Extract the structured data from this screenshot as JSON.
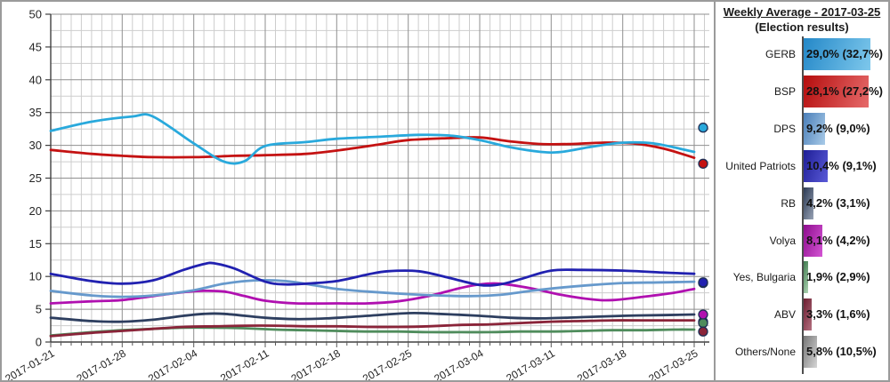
{
  "panel": {
    "title": "Weekly Average - 2017-03-25",
    "subtitle": "(Election results)",
    "items": [
      {
        "label": "GERB",
        "value_text": "29,0% (32,7%)",
        "weekly_avg": 29.0,
        "election_result": 32.7,
        "line_color": "#29a9dc",
        "bar_dark": "#2488c8",
        "bar_light": "#7ec8ec"
      },
      {
        "label": "BSP",
        "value_text": "28,1% (27,2%)",
        "weekly_avg": 28.1,
        "election_result": 27.2,
        "line_color": "#c41212",
        "bar_dark": "#b50d0d",
        "bar_light": "#e66a6a"
      },
      {
        "label": "DPS",
        "value_text": "9,2% (9,0%)",
        "weekly_avg": 9.2,
        "election_result": 9.0,
        "line_color": "#6699cc",
        "bar_dark": "#4a7eb8",
        "bar_light": "#a9cbe8"
      },
      {
        "label": "United Patriots",
        "value_text": "10,4% (9,1%)",
        "weekly_avg": 10.4,
        "election_result": 9.1,
        "line_color": "#2121b0",
        "bar_dark": "#1e1e96",
        "bar_light": "#5a5ad8"
      },
      {
        "label": "RB",
        "value_text": "4,2% (3,1%)",
        "weekly_avg": 4.2,
        "election_result": 3.1,
        "line_color": "#2d3e5f",
        "bar_dark": "#2c3a54",
        "bar_light": "#97a2b4"
      },
      {
        "label": "Volya",
        "value_text": "8,1% (4,2%)",
        "weekly_avg": 8.1,
        "election_result": 4.2,
        "line_color": "#b010b0",
        "bar_dark": "#8e0d8e",
        "bar_light": "#d455d4"
      },
      {
        "label": "Yes, Bulgaria",
        "value_text": "1,9% (2,9%)",
        "weekly_avg": 1.9,
        "election_result": 2.9,
        "line_color": "#4f8c5c",
        "bar_dark": "#3f7a4e",
        "bar_light": "#afd4b4"
      },
      {
        "label": "ABV",
        "value_text": "3,3% (1,6%)",
        "weekly_avg": 3.3,
        "election_result": 1.6,
        "line_color": "#8a2439",
        "bar_dark": "#6b1d30",
        "bar_light": "#b47080"
      },
      {
        "label": "Others/None",
        "value_text": "5,8% (10,5%)",
        "weekly_avg": 5.8,
        "election_result": 10.5,
        "line_color": "#a6a6a6",
        "bar_dark": "#777777",
        "bar_light": "#d6d6d6"
      }
    ]
  },
  "chart_data": {
    "type": "line",
    "title": "",
    "xlabel": "",
    "ylabel": "",
    "ylim": [
      0,
      50
    ],
    "y_major_step": 5,
    "y_minor_step": 2.5,
    "x_minor_step_days": 1,
    "x_major_step_days": 7,
    "x_total_days": 64,
    "grid": true,
    "x_tick_labels": [
      "2017-01-21",
      "2017-01-28",
      "2017-02-04",
      "2017-02-11",
      "2017-02-18",
      "2017-02-25",
      "2017-03-04",
      "2017-03-11",
      "2017-03-18",
      "2017-03-25"
    ],
    "y_tick_labels": [
      "0",
      "5",
      "10",
      "15",
      "20",
      "25",
      "30",
      "35",
      "40",
      "45",
      "50"
    ],
    "series": [
      {
        "name": "Yes, Bulgaria",
        "color": "#4f8c5c",
        "points": [
          [
            0,
            1.0
          ],
          [
            4,
            1.5
          ],
          [
            7,
            1.8
          ],
          [
            10,
            2.0
          ],
          [
            13,
            2.2
          ],
          [
            16,
            2.2
          ],
          [
            19,
            2.1
          ],
          [
            22,
            1.9
          ],
          [
            25,
            1.8
          ],
          [
            28,
            1.7
          ],
          [
            31,
            1.6
          ],
          [
            34,
            1.6
          ],
          [
            37,
            1.5
          ],
          [
            40,
            1.5
          ],
          [
            43,
            1.5
          ],
          [
            46,
            1.6
          ],
          [
            49,
            1.6
          ],
          [
            52,
            1.7
          ],
          [
            55,
            1.8
          ],
          [
            58,
            1.8
          ],
          [
            61,
            1.9
          ],
          [
            63,
            1.9
          ]
        ]
      },
      {
        "name": "ABV",
        "color": "#8a2439",
        "points": [
          [
            0,
            0.9
          ],
          [
            4,
            1.4
          ],
          [
            7,
            1.7
          ],
          [
            10,
            2.0
          ],
          [
            13,
            2.3
          ],
          [
            16,
            2.4
          ],
          [
            19,
            2.5
          ],
          [
            22,
            2.5
          ],
          [
            25,
            2.4
          ],
          [
            28,
            2.4
          ],
          [
            31,
            2.3
          ],
          [
            34,
            2.3
          ],
          [
            37,
            2.4
          ],
          [
            40,
            2.6
          ],
          [
            43,
            2.7
          ],
          [
            46,
            2.9
          ],
          [
            49,
            3.1
          ],
          [
            52,
            3.2
          ],
          [
            55,
            3.3
          ],
          [
            58,
            3.3
          ],
          [
            63,
            3.3
          ]
        ]
      },
      {
        "name": "RB",
        "color": "#2d3e5f",
        "points": [
          [
            0,
            3.7
          ],
          [
            4,
            3.2
          ],
          [
            7,
            3.1
          ],
          [
            10,
            3.4
          ],
          [
            13,
            4.0
          ],
          [
            15,
            4.3
          ],
          [
            17,
            4.3
          ],
          [
            21,
            3.7
          ],
          [
            24,
            3.5
          ],
          [
            27,
            3.6
          ],
          [
            31,
            4.0
          ],
          [
            35,
            4.4
          ],
          [
            38,
            4.3
          ],
          [
            42,
            4.0
          ],
          [
            45,
            3.7
          ],
          [
            48,
            3.6
          ],
          [
            52,
            3.8
          ],
          [
            56,
            4.0
          ],
          [
            60,
            4.1
          ],
          [
            63,
            4.2
          ]
        ]
      },
      {
        "name": "Volya",
        "color": "#b010b0",
        "points": [
          [
            0,
            5.9
          ],
          [
            4,
            6.2
          ],
          [
            7,
            6.4
          ],
          [
            10,
            7.0
          ],
          [
            13,
            7.6
          ],
          [
            15,
            7.8
          ],
          [
            17,
            7.7
          ],
          [
            19,
            7.0
          ],
          [
            21,
            6.3
          ],
          [
            24,
            5.9
          ],
          [
            28,
            5.9
          ],
          [
            31,
            5.9
          ],
          [
            34,
            6.2
          ],
          [
            37,
            7.0
          ],
          [
            40,
            8.2
          ],
          [
            42,
            8.8
          ],
          [
            44,
            8.9
          ],
          [
            47,
            8.2
          ],
          [
            50,
            7.2
          ],
          [
            53,
            6.5
          ],
          [
            55,
            6.4
          ],
          [
            58,
            6.9
          ],
          [
            61,
            7.5
          ],
          [
            63,
            8.1
          ]
        ]
      },
      {
        "name": "DPS",
        "color": "#6699cc",
        "points": [
          [
            0,
            7.8
          ],
          [
            4,
            7.1
          ],
          [
            7,
            6.9
          ],
          [
            10,
            7.1
          ],
          [
            14,
            7.9
          ],
          [
            17,
            8.9
          ],
          [
            20,
            9.4
          ],
          [
            23,
            9.3
          ],
          [
            26,
            8.6
          ],
          [
            28,
            8.1
          ],
          [
            31,
            7.7
          ],
          [
            35,
            7.3
          ],
          [
            38,
            7.1
          ],
          [
            41,
            7.0
          ],
          [
            44,
            7.2
          ],
          [
            47,
            7.8
          ],
          [
            50,
            8.3
          ],
          [
            53,
            8.7
          ],
          [
            56,
            9.0
          ],
          [
            60,
            9.1
          ],
          [
            63,
            9.2
          ]
        ]
      },
      {
        "name": "United Patriots",
        "color": "#2121b0",
        "points": [
          [
            0,
            10.4
          ],
          [
            4,
            9.3
          ],
          [
            7,
            8.9
          ],
          [
            10,
            9.4
          ],
          [
            13,
            11.0
          ],
          [
            15,
            11.9
          ],
          [
            16,
            12.0
          ],
          [
            18,
            11.2
          ],
          [
            21,
            9.2
          ],
          [
            23,
            8.8
          ],
          [
            25,
            8.9
          ],
          [
            28,
            9.3
          ],
          [
            31,
            10.3
          ],
          [
            33,
            10.8
          ],
          [
            36,
            10.8
          ],
          [
            39,
            9.8
          ],
          [
            42,
            8.7
          ],
          [
            44,
            8.8
          ],
          [
            46,
            9.6
          ],
          [
            49,
            10.9
          ],
          [
            52,
            11.0
          ],
          [
            56,
            10.9
          ],
          [
            60,
            10.6
          ],
          [
            63,
            10.4
          ]
        ]
      },
      {
        "name": "BSP",
        "color": "#c41212",
        "points": [
          [
            0,
            29.3
          ],
          [
            4,
            28.7
          ],
          [
            7,
            28.4
          ],
          [
            10,
            28.2
          ],
          [
            14,
            28.2
          ],
          [
            18,
            28.4
          ],
          [
            21,
            28.5
          ],
          [
            25,
            28.7
          ],
          [
            28,
            29.2
          ],
          [
            32,
            30.1
          ],
          [
            35,
            30.8
          ],
          [
            39,
            31.1
          ],
          [
            42,
            31.2
          ],
          [
            45,
            30.6
          ],
          [
            48,
            30.2
          ],
          [
            51,
            30.2
          ],
          [
            54,
            30.4
          ],
          [
            57,
            30.3
          ],
          [
            60,
            29.5
          ],
          [
            63,
            28.1
          ]
        ]
      },
      {
        "name": "GERB",
        "color": "#29a9dc",
        "points": [
          [
            0,
            32.2
          ],
          [
            4,
            33.6
          ],
          [
            8,
            34.4
          ],
          [
            10,
            34.4
          ],
          [
            14,
            30.3
          ],
          [
            17,
            27.5
          ],
          [
            19,
            27.6
          ],
          [
            21,
            29.9
          ],
          [
            25,
            30.5
          ],
          [
            28,
            31.0
          ],
          [
            32,
            31.3
          ],
          [
            36,
            31.6
          ],
          [
            39,
            31.5
          ],
          [
            42,
            30.8
          ],
          [
            45,
            29.7
          ],
          [
            48,
            29.0
          ],
          [
            50,
            29.0
          ],
          [
            53,
            29.8
          ],
          [
            56,
            30.4
          ],
          [
            59,
            30.3
          ],
          [
            63,
            29.0
          ]
        ]
      }
    ],
    "election_dots": [
      {
        "name": "GERB",
        "value": 32.7,
        "color": "#29a9dc"
      },
      {
        "name": "BSP",
        "value": 27.2,
        "color": "#c41212"
      },
      {
        "name": "DPS",
        "value": 9.0,
        "color": "#6699cc"
      },
      {
        "name": "United Patriots",
        "value": 9.1,
        "color": "#2121b0"
      },
      {
        "name": "RB",
        "value": 3.1,
        "color": "#2d3e5f"
      },
      {
        "name": "Yes, Bulgaria",
        "value": 2.9,
        "color": "#4f8c5c"
      },
      {
        "name": "Volya",
        "value": 4.2,
        "color": "#b010b0"
      },
      {
        "name": "ABV",
        "value": 1.6,
        "color": "#8a2439"
      }
    ]
  }
}
